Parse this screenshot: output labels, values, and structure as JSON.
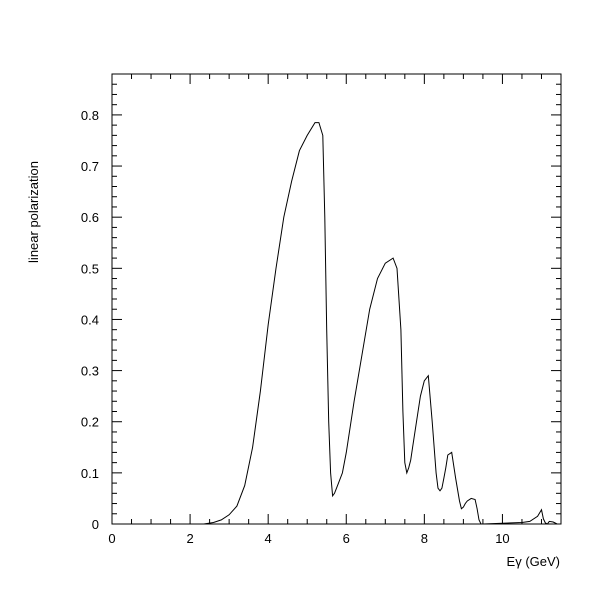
{
  "chart_data": {
    "type": "line",
    "title": "",
    "xlabel": "Eγ (GeV)",
    "ylabel": "linear polarization",
    "xlim": [
      0,
      11.5
    ],
    "ylim": [
      0,
      0.88
    ],
    "x_ticks": [
      0,
      2,
      4,
      6,
      8,
      10
    ],
    "x_tick_labels": [
      "0",
      "2",
      "4",
      "6",
      "8",
      "10"
    ],
    "y_ticks": [
      0,
      0.1,
      0.2,
      0.3,
      0.4,
      0.5,
      0.6,
      0.7,
      0.8
    ],
    "y_tick_labels": [
      "0",
      "0.1",
      "0.2",
      "0.3",
      "0.4",
      "0.5",
      "0.6",
      "0.7",
      "0.8"
    ],
    "grid": false,
    "legend": "none",
    "series": [
      {
        "x": [
          0.0,
          2.35,
          2.6,
          2.8,
          3.0,
          3.2,
          3.4,
          3.6,
          3.8,
          4.0,
          4.2,
          4.4,
          4.6,
          4.8,
          5.0,
          5.2,
          5.3,
          5.4,
          5.45,
          5.5,
          5.55,
          5.6,
          5.65,
          5.7,
          5.75,
          5.8,
          5.9,
          6.0,
          6.2,
          6.4,
          6.6,
          6.8,
          7.0,
          7.2,
          7.3,
          7.4,
          7.45,
          7.5,
          7.55,
          7.6,
          7.65,
          7.7,
          7.8,
          7.9,
          8.0,
          8.1,
          8.2,
          8.3,
          8.35,
          8.4,
          8.45,
          8.5,
          8.55,
          8.6,
          8.7,
          8.8,
          8.9,
          8.95,
          9.0,
          9.05,
          9.1,
          9.2,
          9.3,
          9.35,
          9.4,
          9.45,
          9.5,
          10.5,
          10.7,
          10.9,
          11.0,
          11.05,
          11.1,
          11.15,
          11.2,
          11.3,
          11.4,
          11.5
        ],
        "y": [
          0.0,
          0.0,
          0.003,
          0.008,
          0.018,
          0.035,
          0.075,
          0.15,
          0.26,
          0.39,
          0.5,
          0.6,
          0.67,
          0.73,
          0.76,
          0.785,
          0.785,
          0.76,
          0.6,
          0.38,
          0.2,
          0.1,
          0.055,
          0.06,
          0.07,
          0.08,
          0.1,
          0.14,
          0.24,
          0.33,
          0.42,
          0.48,
          0.51,
          0.52,
          0.5,
          0.38,
          0.22,
          0.12,
          0.1,
          0.11,
          0.125,
          0.15,
          0.2,
          0.25,
          0.28,
          0.29,
          0.2,
          0.1,
          0.07,
          0.065,
          0.07,
          0.09,
          0.11,
          0.135,
          0.14,
          0.09,
          0.045,
          0.03,
          0.033,
          0.04,
          0.045,
          0.05,
          0.048,
          0.03,
          0.008,
          0.0,
          0.0,
          0.003,
          0.005,
          0.015,
          0.028,
          0.01,
          0.002,
          0.0,
          0.005,
          0.004,
          0.0,
          0.0
        ]
      }
    ]
  },
  "colors": {
    "line": "#000000",
    "axes": "#000000",
    "background": "#ffffff"
  }
}
